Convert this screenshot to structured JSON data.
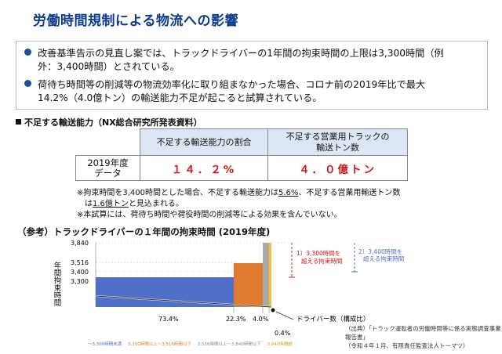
{
  "title": "労働時間規制による物流への影響",
  "summary": {
    "bullet1_line1": "改善基準告示の見直し案では、トラックドライバーの1年間の拘束時間の上限は3,300時間（例",
    "bullet1_line2": "外：3,400時間）とされている。",
    "bullet2_line1": "荷待ち時間等の削減等の物流効率化に取り組まなかった場合、コロナ前の2019年比で最大",
    "bullet2_line2": "14.2%（4.0億トン）の輸送能力不足が起こると試算されている。"
  },
  "section_heading": "不足する輸送能力（NX総合研究所発表資料）",
  "table": {
    "col1_header": "不足する輸送能力の割合",
    "col2_header_line1": "不足する営業用トラックの",
    "col2_header_line2": "輸送トン数",
    "row_label_line1": "2019年度",
    "row_label_line2": "データ",
    "col1_value": "１４．２%",
    "col2_value": "４．０億トン"
  },
  "notes": {
    "n1_a": "※拘束時間を3,400時間とした場合、不足する輸送能力は",
    "n1_u1": "5.6%",
    "n1_b": "、不足する営業用輸送トン数",
    "n1_c": "は",
    "n1_u2": "1.6億トン",
    "n1_d": "と見込まれる。",
    "n2": "※本試算には、荷待ち時間や荷役時間の削減等による効果を含んでいない。"
  },
  "chart_title": "（参考）トラックドライバーの１年間の拘束時間 (2019年度)",
  "chart_data": {
    "type": "bar",
    "ylabel": "年間拘束時間",
    "xlabel": "ドライバー数（構成比）",
    "y_ticks": [
      "3,300",
      "3,400",
      "3,516",
      "3,840"
    ],
    "ylim": [
      3250,
      3860
    ],
    "segments": [
      {
        "share_label": "73.4%",
        "share": 73.4,
        "hours": 3300,
        "color": "#4f6fc8"
      },
      {
        "share_label": "22.3%",
        "share": 22.3,
        "hours": 3516,
        "color": "#e07a2e"
      },
      {
        "share_label": "4.0%",
        "share": 4.0,
        "hours": 3840,
        "color": "#a9a9a9"
      },
      {
        "share_label": "0.4%",
        "share": 0.4,
        "hours": 3840,
        "color": "#f2c230"
      }
    ],
    "annotations": [
      {
        "text_line1": "1）3,300時間を",
        "text_line2": "超える拘束時間",
        "color": "#d01818"
      },
      {
        "text_line1": "2）3,400時間を",
        "text_line2": "超える拘束時間",
        "color": "#4f6fc8"
      }
    ]
  },
  "source": {
    "line1": "（出典）「トラック運転者の労働時間等に係る実態調査事業報告書」",
    "line2": "（令和４年１月、有限責任監査法人トーマツ）"
  },
  "legend": [
    "～3,300時間未満",
    "3,300時間以上～3,516時間以下",
    "3,516時間以上～3,840時間以下",
    "3,840時間超"
  ],
  "colors": {
    "title": "#0b3c8c",
    "accent_red": "#d01818",
    "table_header_bg": "#dde6f4"
  }
}
